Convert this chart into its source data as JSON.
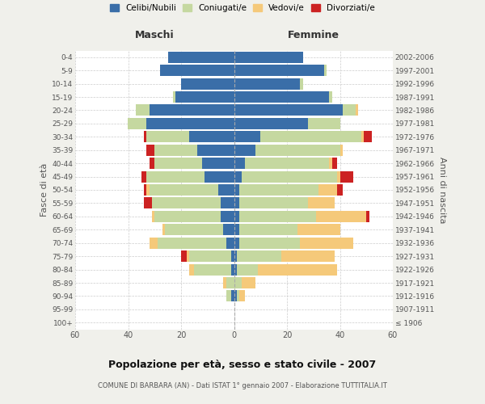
{
  "age_groups": [
    "100+",
    "95-99",
    "90-94",
    "85-89",
    "80-84",
    "75-79",
    "70-74",
    "65-69",
    "60-64",
    "55-59",
    "50-54",
    "45-49",
    "40-44",
    "35-39",
    "30-34",
    "25-29",
    "20-24",
    "15-19",
    "10-14",
    "5-9",
    "0-4"
  ],
  "birth_years": [
    "≤ 1906",
    "1907-1911",
    "1912-1916",
    "1917-1921",
    "1922-1926",
    "1927-1931",
    "1932-1936",
    "1937-1941",
    "1942-1946",
    "1947-1951",
    "1952-1956",
    "1957-1961",
    "1962-1966",
    "1967-1971",
    "1972-1976",
    "1977-1981",
    "1982-1986",
    "1987-1991",
    "1992-1996",
    "1997-2001",
    "2002-2006"
  ],
  "males": {
    "celibi": [
      0,
      0,
      1,
      0,
      1,
      1,
      3,
      4,
      5,
      5,
      6,
      11,
      12,
      14,
      17,
      33,
      32,
      22,
      20,
      28,
      25
    ],
    "coniugati": [
      0,
      0,
      2,
      3,
      14,
      16,
      26,
      22,
      25,
      26,
      26,
      22,
      18,
      16,
      16,
      7,
      5,
      1,
      0,
      0,
      0
    ],
    "vedovi": [
      0,
      0,
      0,
      1,
      2,
      1,
      3,
      1,
      1,
      0,
      1,
      0,
      0,
      0,
      0,
      0,
      0,
      0,
      0,
      0,
      0
    ],
    "divorziati": [
      0,
      0,
      0,
      0,
      0,
      2,
      0,
      0,
      0,
      3,
      1,
      2,
      2,
      3,
      1,
      0,
      0,
      0,
      0,
      0,
      0
    ]
  },
  "females": {
    "nubili": [
      0,
      0,
      1,
      0,
      1,
      1,
      2,
      2,
      2,
      2,
      2,
      3,
      4,
      8,
      10,
      28,
      41,
      36,
      25,
      34,
      26
    ],
    "coniugate": [
      0,
      0,
      1,
      3,
      8,
      17,
      23,
      22,
      29,
      26,
      30,
      36,
      32,
      32,
      38,
      12,
      5,
      1,
      1,
      1,
      0
    ],
    "vedove": [
      0,
      0,
      2,
      5,
      30,
      20,
      20,
      16,
      19,
      10,
      7,
      1,
      1,
      1,
      1,
      0,
      1,
      0,
      0,
      0,
      0
    ],
    "divorziate": [
      0,
      0,
      0,
      0,
      0,
      0,
      0,
      0,
      1,
      0,
      2,
      5,
      2,
      0,
      3,
      0,
      0,
      0,
      0,
      0,
      0
    ]
  },
  "colors": {
    "celibi": "#3a6ea8",
    "coniugati": "#c5d8a0",
    "vedovi": "#f5c97a",
    "divorziati": "#cc2222"
  },
  "xlim": 60,
  "title": "Popolazione per età, sesso e stato civile - 2007",
  "subtitle": "COMUNE DI BARBARA (AN) - Dati ISTAT 1° gennaio 2007 - Elaborazione TUTTITALIA.IT",
  "xlabel_left": "Maschi",
  "xlabel_right": "Femmine",
  "ylabel_left": "Fasce di età",
  "ylabel_right": "Anni di nascita",
  "legend_labels": [
    "Celibi/Nubili",
    "Coniugati/e",
    "Vedovi/e",
    "Divorziati/e"
  ],
  "bg_color": "#f0f0eb",
  "bar_bg_color": "#ffffff"
}
